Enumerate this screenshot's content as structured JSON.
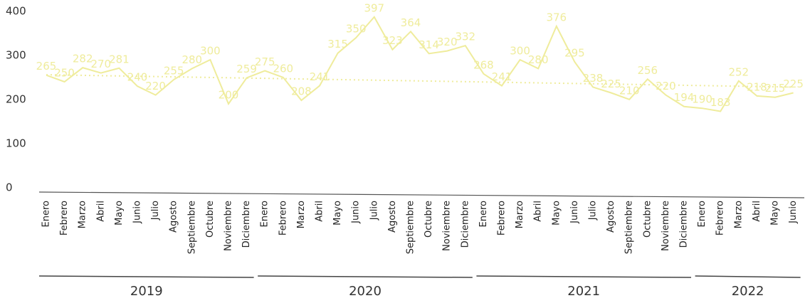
{
  "chart_data": {
    "type": "line",
    "groups": [
      {
        "name": "2019",
        "categories": [
          "Enero",
          "Febrero",
          "Marzo",
          "Abril",
          "Mayo",
          "Junio",
          "Julio",
          "Agosto",
          "Septiembre",
          "Octubre",
          "Noviembre",
          "Diciembre"
        ]
      },
      {
        "name": "2020",
        "categories": [
          "Enero",
          "Febrero",
          "Marzo",
          "Abril",
          "Mayo",
          "Junio",
          "Julio",
          "Agosto",
          "Septiembre",
          "Octubre",
          "Noviembre",
          "Diciembre"
        ]
      },
      {
        "name": "2021",
        "categories": [
          "Enero",
          "Febrero",
          "Marzo",
          "Abril",
          "Mayo",
          "Junio",
          "Julio",
          "Agosto",
          "Septiembre",
          "Octubre",
          "Noviembre",
          "Diciembre"
        ]
      },
      {
        "name": "2022",
        "categories": [
          "Enero",
          "Febrero",
          "Marzo",
          "Abril",
          "Mayo",
          "Junio"
        ]
      }
    ],
    "values": [
      265,
      250,
      282,
      270,
      281,
      240,
      220,
      255,
      280,
      300,
      200,
      259,
      275,
      260,
      208,
      241,
      315,
      350,
      397,
      323,
      364,
      314,
      320,
      332,
      268,
      241,
      300,
      280,
      376,
      295,
      238,
      225,
      210,
      256,
      220,
      194,
      190,
      183,
      252,
      218,
      215,
      225
    ],
    "color": "#efec9c",
    "trendline": [
      266,
      238
    ],
    "ylim": [
      0,
      400
    ],
    "yticks": [
      0,
      100,
      200,
      300,
      400
    ]
  }
}
